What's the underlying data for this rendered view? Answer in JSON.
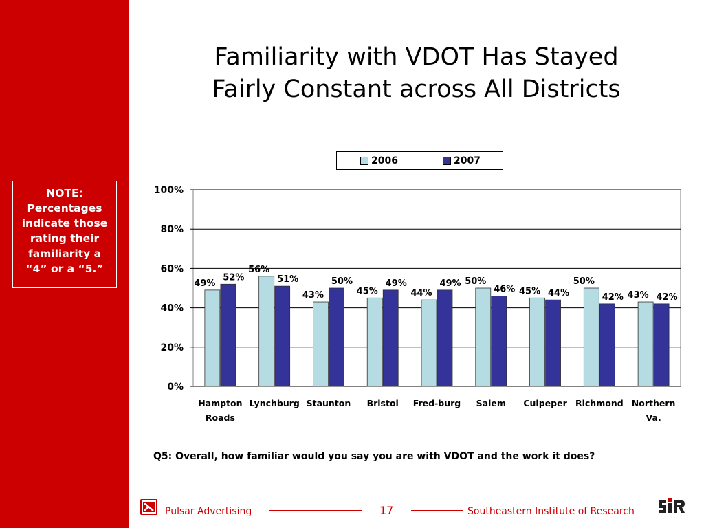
{
  "title": {
    "line1": "Familiarity with VDOT Has Stayed",
    "line2": "Fairly Constant across All Districts"
  },
  "note": {
    "lines": [
      "NOTE:",
      "Percentages",
      "indicate those",
      "rating their",
      "familiarity a",
      "“4” or a “5.”"
    ]
  },
  "question": "Q5:  Overall, how familiar would you say you are with VDOT and the work it does?",
  "footer": {
    "left": "Pulsar Advertising",
    "page": "17",
    "right": "Southeastern Institute of Research"
  },
  "chart_data": {
    "type": "bar",
    "categories": [
      "Hampton Roads",
      "Lynchburg",
      "Staunton",
      "Bristol",
      "Fred-burg",
      "Salem",
      "Culpeper",
      "Richmond",
      "Northern Va."
    ],
    "category_lines": [
      [
        "Hampton",
        "Roads"
      ],
      [
        "Lynchburg"
      ],
      [
        "Staunton"
      ],
      [
        "Bristol"
      ],
      [
        "Fred-burg"
      ],
      [
        "Salem"
      ],
      [
        "Culpeper"
      ],
      [
        "Richmond"
      ],
      [
        "Northern",
        "Va."
      ]
    ],
    "series": [
      {
        "name": "2006",
        "color": "#b4dce2",
        "values": [
          49,
          56,
          43,
          45,
          44,
          50,
          45,
          50,
          43
        ]
      },
      {
        "name": "2007",
        "color": "#333399",
        "values": [
          52,
          51,
          50,
          49,
          49,
          46,
          44,
          42,
          42
        ]
      }
    ],
    "value_suffix": "%",
    "ylim": [
      0,
      100
    ],
    "yticks": [
      "0%",
      "20%",
      "40%",
      "60%",
      "80%",
      "100%"
    ],
    "grid": true,
    "legend": "top"
  },
  "colors": {
    "accent": "#cc0000"
  }
}
